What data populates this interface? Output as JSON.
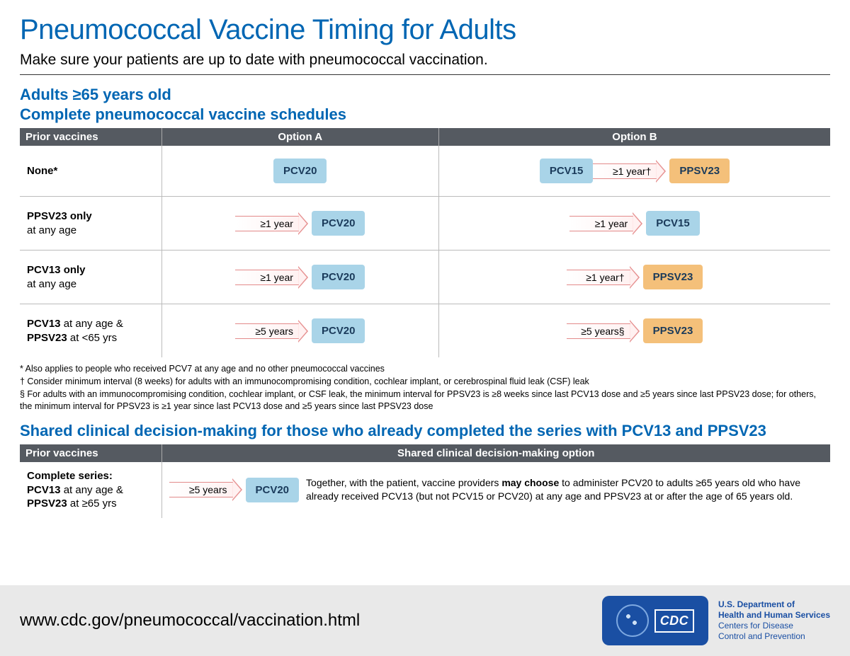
{
  "colors": {
    "brand_blue": "#0066b3",
    "header_gray": "#555a61",
    "pill_blue_bg": "#a9d4e8",
    "pill_orange_bg": "#f4c07a",
    "arrow_border": "#e38a8a",
    "footer_bg": "#e9e9e9",
    "cdc_badge_bg": "#1a4fa3"
  },
  "title": "Pneumococcal Vaccine Timing for Adults",
  "subtitle": "Make sure your patients are up to date with pneumococcal vaccination.",
  "section1": {
    "heading_line1": "Adults ≥65 years old",
    "heading_line2": "Complete pneumococcal vaccine schedules",
    "columns": {
      "prior": "Prior vaccines",
      "a": "Option A",
      "b": "Option B"
    },
    "rows": [
      {
        "prior_html": "<b>None*</b>",
        "a": [
          {
            "type": "pill",
            "label": "PCV20",
            "color": "blue"
          }
        ],
        "b": [
          {
            "type": "pill",
            "label": "PCV15",
            "color": "blue"
          },
          {
            "type": "arrow",
            "label": "≥1 year†"
          },
          {
            "type": "pill",
            "label": "PPSV23",
            "color": "orange"
          }
        ]
      },
      {
        "prior_html": "<b>PPSV23 only</b><br>at any age",
        "a": [
          {
            "type": "arrow",
            "label": "≥1 year"
          },
          {
            "type": "pill",
            "label": "PCV20",
            "color": "blue"
          }
        ],
        "b": [
          {
            "type": "arrow",
            "label": "≥1 year"
          },
          {
            "type": "pill",
            "label": "PCV15",
            "color": "blue"
          }
        ]
      },
      {
        "prior_html": "<b>PCV13 only</b><br>at any age",
        "a": [
          {
            "type": "arrow",
            "label": "≥1 year"
          },
          {
            "type": "pill",
            "label": "PCV20",
            "color": "blue"
          }
        ],
        "b": [
          {
            "type": "arrow",
            "label": "≥1 year†"
          },
          {
            "type": "pill",
            "label": "PPSV23",
            "color": "orange"
          }
        ]
      },
      {
        "prior_html": "<b>PCV13</b> at any age &amp;<br><b>PPSV23</b> at &lt;65 yrs",
        "a": [
          {
            "type": "arrow",
            "label": "≥5 years"
          },
          {
            "type": "pill",
            "label": "PCV20",
            "color": "blue"
          }
        ],
        "b": [
          {
            "type": "arrow",
            "label": "≥5 years§"
          },
          {
            "type": "pill",
            "label": "PPSV23",
            "color": "orange"
          }
        ]
      }
    ]
  },
  "footnotes": [
    "* Also applies to people who received PCV7 at any age and no other pneumococcal vaccines",
    "† Consider minimum interval (8 weeks) for adults with an immunocompromising condition, cochlear implant, or cerebrospinal fluid leak (CSF) leak",
    "§ For adults with an immunocompromising condition, cochlear implant, or CSF leak, the minimum interval for PPSV23 is ≥8 weeks since last PCV13 dose and ≥5 years since last PPSV23 dose; for others, the minimum interval for PPSV23 is ≥1 year since last PCV13 dose and ≥5 years since last PPSV23 dose"
  ],
  "section2": {
    "heading": "Shared clinical decision-making for those who already completed the series with PCV13 and PPSV23",
    "columns": {
      "prior": "Prior vaccines",
      "shared": "Shared clinical decision-making option"
    },
    "row": {
      "prior_html": "<b>Complete series:</b><br><b>PCV13</b> at any age &amp;<br><b>PPSV23</b> at ≥65 yrs",
      "flow": [
        {
          "type": "arrow",
          "label": "≥5 years"
        },
        {
          "type": "pill",
          "label": "PCV20",
          "color": "blue"
        }
      ],
      "text_html": "Together, with the patient, vaccine providers <b>may choose</b> to administer PCV20 to adults ≥65 years old who have already received PCV13 (but not PCV15 or PCV20) at any age and PPSV23 at or after the age of 65 years old."
    }
  },
  "footer": {
    "url": "www.cdc.gov/pneumococcal/vaccination.html",
    "cdc_label": "CDC",
    "dept_html": "<b>U.S. Department of</b><br><b>Health and Human Services</b><br>Centers for Disease<br>Control and Prevention"
  }
}
